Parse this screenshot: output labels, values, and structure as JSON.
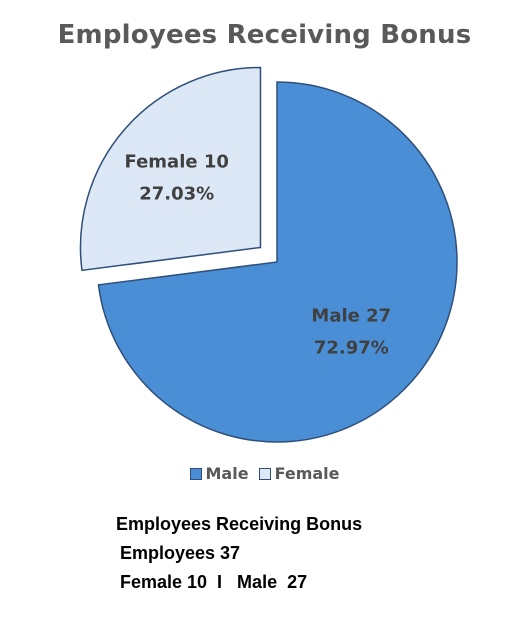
{
  "chart_data": {
    "type": "pie",
    "title": "Employees Receiving Bonus",
    "slices": [
      {
        "name": "Male",
        "value": 27,
        "label_line1": "Male 27",
        "label_line2": "72.97%",
        "color": "#4a8fd6",
        "border": "#2f4e7a"
      },
      {
        "name": "Female",
        "value": 10,
        "label_line1": "Female 10",
        "label_line2": "27.03%",
        "color": "#dce8f6",
        "border": "#2f4e7a",
        "exploded": true
      }
    ],
    "legend_position": "bottom",
    "legend": [
      "Male",
      "Female"
    ]
  },
  "summary": {
    "line1": "Employees Receiving Bonus",
    "line2": "Employees  37",
    "line3": "Female 10  I   Male  27"
  }
}
